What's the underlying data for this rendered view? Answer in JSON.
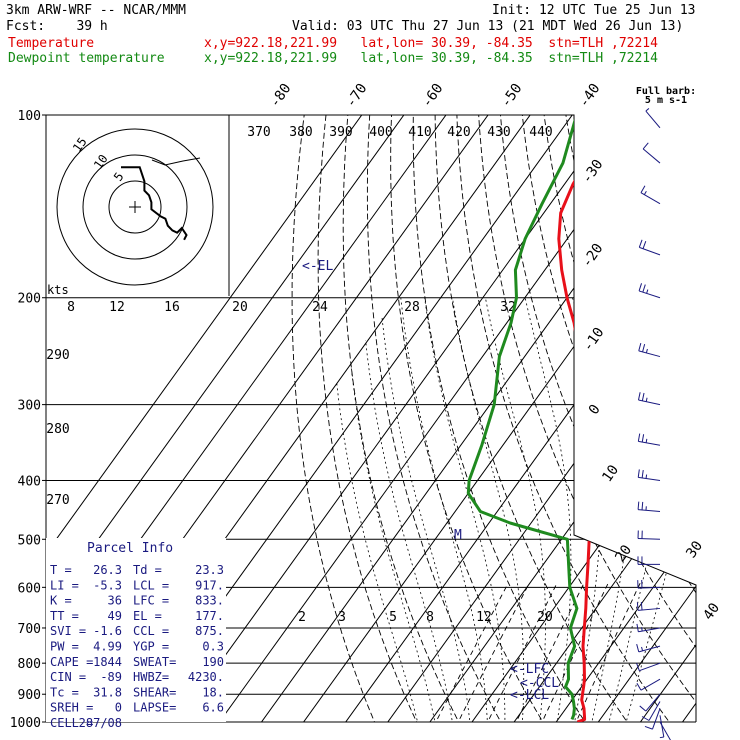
{
  "header": {
    "model": "3km ARW-WRF -- NCAR/MMM",
    "init": "Init: 12 UTC Tue 25 Jun 13",
    "fcst": "Fcst:    39 h",
    "valid": "Valid: 03 UTC Thu 27 Jun 13 (21 MDT Wed 26 Jun 13)",
    "temp_label": "Temperature",
    "dew_label": "Dewpoint temperature",
    "temp_loc": "x,y=922.18,221.99   lat,lon= 30.39, -84.35  stn=TLH ,72214",
    "dew_loc": "x,y=922.18,221.99   lat,lon= 30.39, -84.35  stn=TLH ,72214"
  },
  "colors": {
    "temperature": "#e8101a",
    "dewpoint": "#1f8a1f",
    "annot": "#1a1a80",
    "hodo": "#000000"
  },
  "wind_profile": {
    "title1": "Full barb:",
    "title2": "5 m s-1"
  },
  "hodograph": {
    "units": "kts",
    "ring_labels": [
      "5",
      "10",
      "15"
    ],
    "points_uv": [
      [
        -6,
        17
      ],
      [
        2,
        17
      ],
      [
        4,
        11
      ],
      [
        4,
        7
      ],
      [
        6,
        5
      ],
      [
        7,
        2
      ],
      [
        7,
        -1
      ],
      [
        11,
        -4
      ],
      [
        13,
        -5
      ],
      [
        14,
        -8
      ],
      [
        16,
        -10
      ],
      [
        18,
        -11
      ],
      [
        20,
        -9
      ],
      [
        22,
        -12
      ],
      [
        21,
        -14
      ]
    ]
  },
  "parcel_info": {
    "title": "Parcel Info",
    "rows": [
      [
        "T  =",
        "26.3",
        "Td =",
        "23.3"
      ],
      [
        "LI =",
        "-5.3",
        "LCL =",
        "917."
      ],
      [
        "K  =",
        "36",
        "LFC =",
        "833."
      ],
      [
        "TT =",
        "49",
        "EL  =",
        "177."
      ],
      [
        "SVI =",
        "-1.6",
        "CCL =",
        "875."
      ],
      [
        "PW =",
        "4.99",
        "YGP =",
        "0.3"
      ],
      [
        "CAPE =",
        "1844",
        "SWEAT=",
        "190"
      ],
      [
        "CIN =",
        "-89",
        "HWBZ=",
        "4230."
      ],
      [
        "Tc =",
        "31.8",
        "SHEAR=",
        "18."
      ],
      [
        "SREH =",
        "0",
        "LAPSE=",
        "6.6"
      ],
      [
        "CELL =",
        "287/08",
        "",
        ""
      ]
    ]
  },
  "chart_data": {
    "type": "line",
    "title": "",
    "xlabel": "",
    "ylabel": "",
    "pressure_levels": [
      100,
      200,
      300,
      400,
      500,
      600,
      700,
      800,
      900,
      1000
    ],
    "isotherm_labels": [
      "-80",
      "-70",
      "-60",
      "-50",
      "-40",
      "-30",
      "-20",
      "-10",
      "0",
      "10",
      "20",
      "30",
      "40"
    ],
    "theta_labels": [
      "370",
      "380",
      "390",
      "400",
      "410",
      "420",
      "430",
      "440"
    ],
    "theta_left_labels": [
      "290",
      "280",
      "270"
    ],
    "mixing_ratio_labels": [
      "2",
      "3",
      "5",
      "8",
      "12",
      "20"
    ],
    "mid_labels": [
      "8",
      "12",
      "16",
      "20",
      "24",
      "28",
      "32"
    ],
    "annotations": [
      "<-EL",
      "<-LFC",
      "<-CCL",
      "<-LCL"
    ],
    "series": [
      {
        "name": "Temperature",
        "points": [
          [
            1000,
            25
          ],
          [
            990,
            26.3
          ],
          [
            980,
            25.8
          ],
          [
            950,
            24.3
          ],
          [
            920,
            22.3
          ],
          [
            900,
            21.5
          ],
          [
            875,
            20.5
          ],
          [
            850,
            19.4
          ],
          [
            800,
            16.6
          ],
          [
            750,
            13.4
          ],
          [
            700,
            10.6
          ],
          [
            650,
            7.6
          ],
          [
            600,
            4.2
          ],
          [
            550,
            0.6
          ],
          [
            500,
            -3.4
          ],
          [
            450,
            -8.2
          ],
          [
            400,
            -13.6
          ],
          [
            350,
            -19.9
          ],
          [
            300,
            -27.6
          ],
          [
            250,
            -37
          ],
          [
            220,
            -44
          ],
          [
            200,
            -50
          ],
          [
            180,
            -56
          ],
          [
            160,
            -62
          ],
          [
            145,
            -66
          ],
          [
            130,
            -68
          ],
          [
            115,
            -69
          ],
          [
            100,
            -71
          ]
        ]
      },
      {
        "name": "Dewpoint temperature",
        "points": [
          [
            990,
            23.3
          ],
          [
            975,
            23
          ],
          [
            950,
            22
          ],
          [
            925,
            20.6
          ],
          [
            900,
            19
          ],
          [
            875,
            16.2
          ],
          [
            850,
            15.6
          ],
          [
            800,
            12.8
          ],
          [
            750,
            11.4
          ],
          [
            700,
            7.3
          ],
          [
            650,
            5.5
          ],
          [
            600,
            0.2
          ],
          [
            550,
            -4
          ],
          [
            500,
            -8.6
          ],
          [
            470,
            -25
          ],
          [
            450,
            -34
          ],
          [
            420,
            -40
          ],
          [
            400,
            -42
          ],
          [
            350,
            -45
          ],
          [
            300,
            -49
          ],
          [
            250,
            -56
          ],
          [
            220,
            -59
          ],
          [
            200,
            -62
          ],
          [
            180,
            -67
          ],
          [
            160,
            -70
          ],
          [
            140,
            -72
          ],
          [
            120,
            -74
          ],
          [
            100,
            -79
          ]
        ]
      }
    ],
    "wind_barbs": [
      {
        "p": 1000,
        "speed_ms": 3,
        "dir_deg": 150
      },
      {
        "p": 975,
        "speed_ms": 4,
        "dir_deg": 170
      },
      {
        "p": 950,
        "speed_ms": 5,
        "dir_deg": 200
      },
      {
        "p": 925,
        "speed_ms": 5,
        "dir_deg": 210
      },
      {
        "p": 900,
        "speed_ms": 5,
        "dir_deg": 220
      },
      {
        "p": 850,
        "speed_ms": 6,
        "dir_deg": 240
      },
      {
        "p": 800,
        "speed_ms": 7,
        "dir_deg": 250
      },
      {
        "p": 750,
        "speed_ms": 8,
        "dir_deg": 255
      },
      {
        "p": 700,
        "speed_ms": 9,
        "dir_deg": 260
      },
      {
        "p": 650,
        "speed_ms": 10,
        "dir_deg": 265
      },
      {
        "p": 600,
        "speed_ms": 11,
        "dir_deg": 268
      },
      {
        "p": 550,
        "speed_ms": 12,
        "dir_deg": 270
      },
      {
        "p": 500,
        "speed_ms": 12,
        "dir_deg": 272
      },
      {
        "p": 450,
        "speed_ms": 13,
        "dir_deg": 275
      },
      {
        "p": 400,
        "speed_ms": 13,
        "dir_deg": 278
      },
      {
        "p": 350,
        "speed_ms": 14,
        "dir_deg": 280
      },
      {
        "p": 300,
        "speed_ms": 14,
        "dir_deg": 282
      },
      {
        "p": 250,
        "speed_ms": 14,
        "dir_deg": 285
      },
      {
        "p": 200,
        "speed_ms": 13,
        "dir_deg": 288
      },
      {
        "p": 170,
        "speed_ms": 12,
        "dir_deg": 290
      },
      {
        "p": 140,
        "speed_ms": 8,
        "dir_deg": 300
      },
      {
        "p": 120,
        "speed_ms": 6,
        "dir_deg": 310
      },
      {
        "p": 105,
        "speed_ms": 4,
        "dir_deg": 320
      }
    ]
  }
}
